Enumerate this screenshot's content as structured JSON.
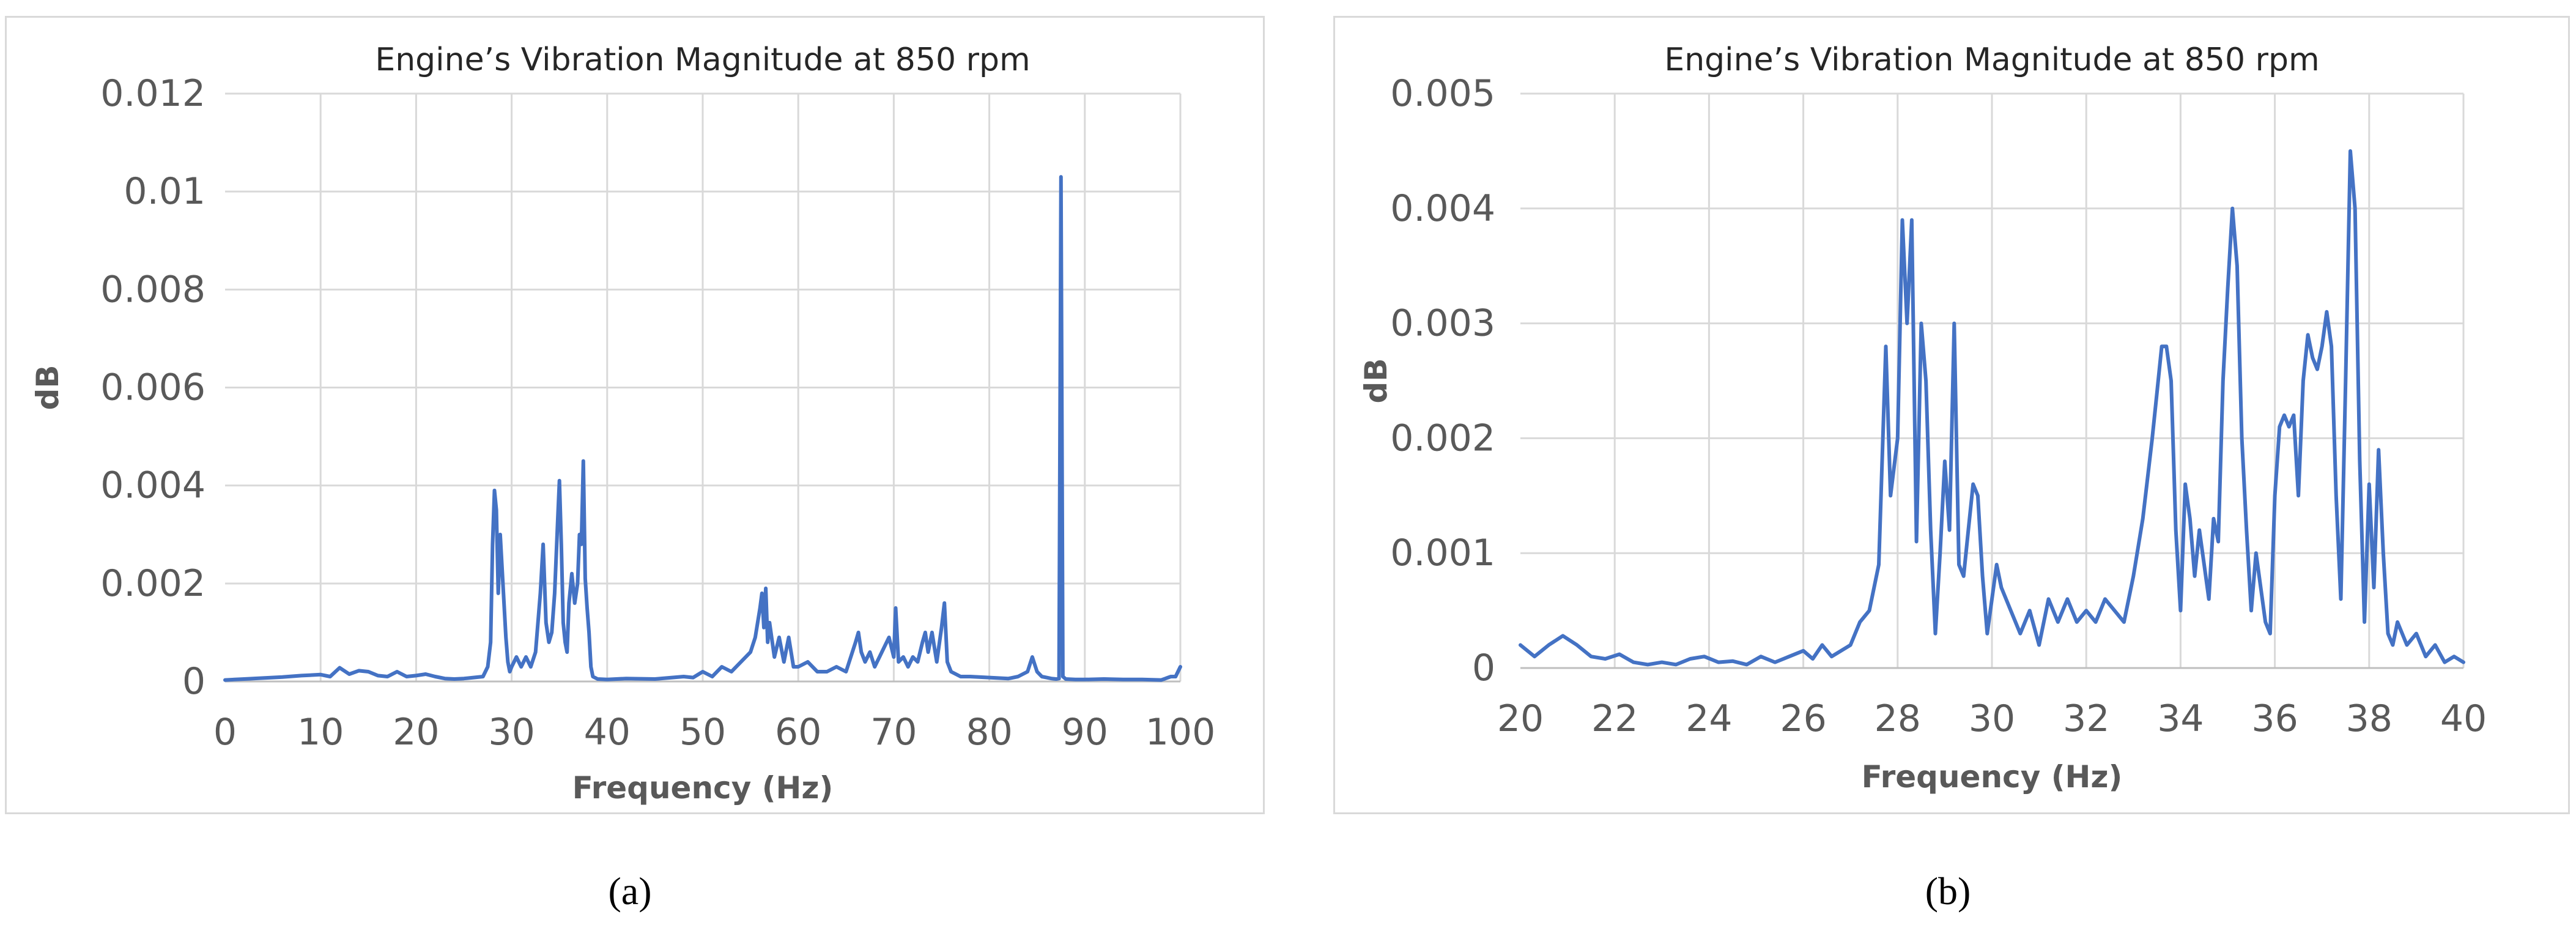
{
  "chart_data": [
    {
      "type": "line",
      "title": "Engine’s Vibration Magnitude at 850 rpm",
      "xlabel": "Frequency (Hz)",
      "ylabel": "dB",
      "xlim": [
        0,
        100
      ],
      "ylim": [
        0,
        0.012
      ],
      "xticks": [
        "0",
        "10",
        "20",
        "30",
        "40",
        "50",
        "60",
        "70",
        "80",
        "90",
        "100"
      ],
      "yticks": [
        "0",
        "0.002",
        "0.004",
        "0.006",
        "0.008",
        "0.01",
        "0.012"
      ],
      "grid": true,
      "color": "#4472c4",
      "series": [
        {
          "x": [
            0,
            2,
            4,
            6,
            8,
            10,
            11,
            12,
            13,
            14,
            15,
            16,
            17,
            18,
            19,
            20,
            21,
            22,
            23,
            24,
            25,
            26,
            27,
            27.5,
            27.8,
            28,
            28.2,
            28.4,
            28.6,
            28.8,
            29,
            29.2,
            29.4,
            29.6,
            29.8,
            30,
            30.5,
            31,
            31.5,
            32,
            32.5,
            33,
            33.3,
            33.6,
            33.9,
            34.2,
            34.5,
            34.8,
            35,
            35.2,
            35.4,
            35.6,
            35.8,
            36,
            36.3,
            36.6,
            36.9,
            37.1,
            37.3,
            37.5,
            37.7,
            37.9,
            38.1,
            38.3,
            38.5,
            39,
            40,
            42,
            45,
            48,
            49,
            50,
            51,
            52,
            53,
            54,
            55,
            55.5,
            56,
            56.2,
            56.4,
            56.6,
            56.8,
            57,
            57.5,
            58,
            58.5,
            59,
            59.5,
            60,
            61,
            62,
            63,
            64,
            65,
            66,
            66.3,
            66.6,
            67,
            67.5,
            68,
            68.5,
            69,
            69.5,
            70,
            70.2,
            70.5,
            71,
            71.5,
            72,
            72.5,
            73,
            73.3,
            73.6,
            74,
            74.5,
            75,
            75.3,
            75.6,
            76,
            77,
            78,
            80,
            82,
            83,
            84,
            84.5,
            85,
            85.5,
            86,
            86.5,
            87,
            87.3,
            87.5,
            87.7,
            88,
            89,
            90,
            92,
            94,
            96,
            98,
            99,
            99.5,
            100
          ],
          "y": [
            3e-05,
            5e-05,
            7e-05,
            9e-05,
            0.00012,
            0.00014,
            0.0001,
            0.00028,
            0.00015,
            0.00022,
            0.0002,
            0.00012,
            0.0001,
            0.0002,
            0.0001,
            0.00012,
            0.00015,
            0.0001,
            6e-05,
            5e-05,
            6e-05,
            8e-05,
            0.0001,
            0.0003,
            0.0008,
            0.0028,
            0.0039,
            0.0035,
            0.0018,
            0.003,
            0.0023,
            0.0016,
            0.0009,
            0.0004,
            0.0002,
            0.0003,
            0.0005,
            0.0003,
            0.0005,
            0.0003,
            0.0006,
            0.0018,
            0.0028,
            0.0012,
            0.0008,
            0.001,
            0.0018,
            0.0032,
            0.0041,
            0.0028,
            0.0012,
            0.0008,
            0.0006,
            0.0016,
            0.0022,
            0.0016,
            0.002,
            0.003,
            0.0028,
            0.0045,
            0.0021,
            0.0015,
            0.001,
            0.0003,
            0.0001,
            5e-05,
            4e-05,
            6e-05,
            5e-05,
            0.0001,
            8e-05,
            0.0002,
            0.0001,
            0.0003,
            0.0002,
            0.0004,
            0.0006,
            0.0009,
            0.0015,
            0.0018,
            0.0011,
            0.0019,
            0.0008,
            0.0012,
            0.0005,
            0.0009,
            0.0004,
            0.0009,
            0.0003,
            0.0003,
            0.0004,
            0.0002,
            0.0002,
            0.0003,
            0.0002,
            0.0008,
            0.001,
            0.0006,
            0.0004,
            0.0006,
            0.0003,
            0.0005,
            0.0007,
            0.0009,
            0.0005,
            0.0015,
            0.0004,
            0.0005,
            0.0003,
            0.0005,
            0.0004,
            0.0008,
            0.001,
            0.0006,
            0.001,
            0.0004,
            0.0011,
            0.0016,
            0.0004,
            0.0002,
            0.0001,
            0.0001,
            8e-05,
            6e-05,
            0.0001,
            0.0002,
            0.0005,
            0.0002,
            0.0001,
            8e-05,
            6e-05,
            5e-05,
            6e-05,
            0.0103,
            0.0001,
            5e-05,
            4e-05,
            4e-05,
            5e-05,
            4e-05,
            4e-05,
            3e-05,
            0.0001,
            0.0001,
            0.0003
          ]
        }
      ]
    },
    {
      "type": "line",
      "title": "Engine’s Vibration Magnitude at 850 rpm",
      "xlabel": "Frequency (Hz)",
      "ylabel": "dB",
      "xlim": [
        20,
        40
      ],
      "ylim": [
        0,
        0.005
      ],
      "xticks": [
        "20",
        "22",
        "24",
        "26",
        "28",
        "30",
        "32",
        "34",
        "36",
        "38",
        "40"
      ],
      "yticks": [
        "0",
        "0.001",
        "0.002",
        "0.003",
        "0.004",
        "0.005"
      ],
      "grid": true,
      "color": "#4472c4",
      "series": [
        {
          "x": [
            20,
            20.3,
            20.6,
            20.9,
            21.2,
            21.5,
            21.8,
            22.1,
            22.4,
            22.7,
            23,
            23.3,
            23.6,
            23.9,
            24.2,
            24.5,
            24.8,
            25.1,
            25.4,
            25.7,
            26,
            26.2,
            26.4,
            26.6,
            26.8,
            27,
            27.2,
            27.4,
            27.6,
            27.75,
            27.85,
            28,
            28.1,
            28.2,
            28.3,
            28.4,
            28.5,
            28.6,
            28.7,
            28.8,
            28.9,
            29,
            29.1,
            29.2,
            29.3,
            29.4,
            29.5,
            29.6,
            29.7,
            29.8,
            29.9,
            30,
            30.1,
            30.2,
            30.4,
            30.6,
            30.8,
            31,
            31.2,
            31.4,
            31.6,
            31.8,
            32,
            32.2,
            32.4,
            32.6,
            32.8,
            33,
            33.2,
            33.4,
            33.5,
            33.6,
            33.7,
            33.8,
            33.9,
            34,
            34.1,
            34.2,
            34.3,
            34.4,
            34.5,
            34.6,
            34.7,
            34.8,
            34.9,
            35,
            35.1,
            35.2,
            35.3,
            35.4,
            35.5,
            35.6,
            35.7,
            35.8,
            35.9,
            36,
            36.1,
            36.2,
            36.3,
            36.4,
            36.5,
            36.6,
            36.7,
            36.8,
            36.9,
            37,
            37.1,
            37.2,
            37.3,
            37.4,
            37.5,
            37.6,
            37.7,
            37.8,
            37.9,
            38,
            38.1,
            38.2,
            38.3,
            38.4,
            38.5,
            38.6,
            38.8,
            39,
            39.2,
            39.4,
            39.6,
            39.8,
            40
          ],
          "y": [
            0.0002,
            0.0001,
            0.0002,
            0.00028,
            0.0002,
            0.0001,
            8e-05,
            0.00012,
            5e-05,
            3e-05,
            5e-05,
            3e-05,
            8e-05,
            0.0001,
            5e-05,
            6e-05,
            3e-05,
            0.0001,
            5e-05,
            0.0001,
            0.00015,
            8e-05,
            0.0002,
            0.0001,
            0.00015,
            0.0002,
            0.0004,
            0.0005,
            0.0009,
            0.0028,
            0.0015,
            0.002,
            0.0039,
            0.003,
            0.0039,
            0.0011,
            0.003,
            0.0025,
            0.0012,
            0.0003,
            0.001,
            0.0018,
            0.0012,
            0.003,
            0.0009,
            0.0008,
            0.0012,
            0.0016,
            0.0015,
            0.0008,
            0.0003,
            0.0006,
            0.0009,
            0.0007,
            0.0005,
            0.0003,
            0.0005,
            0.0002,
            0.0006,
            0.0004,
            0.0006,
            0.0004,
            0.0005,
            0.0004,
            0.0006,
            0.0005,
            0.0004,
            0.0008,
            0.0013,
            0.002,
            0.0024,
            0.0028,
            0.0028,
            0.0025,
            0.0012,
            0.0005,
            0.0016,
            0.0013,
            0.0008,
            0.0012,
            0.0009,
            0.0006,
            0.0013,
            0.0011,
            0.0025,
            0.0033,
            0.004,
            0.0035,
            0.002,
            0.0012,
            0.0005,
            0.001,
            0.0007,
            0.0004,
            0.0003,
            0.0015,
            0.0021,
            0.0022,
            0.0021,
            0.0022,
            0.0015,
            0.0025,
            0.0029,
            0.0027,
            0.0026,
            0.0028,
            0.0031,
            0.0028,
            0.0015,
            0.0006,
            0.0025,
            0.0045,
            0.004,
            0.0018,
            0.0004,
            0.0016,
            0.0007,
            0.0019,
            0.001,
            0.0003,
            0.0002,
            0.0004,
            0.0002,
            0.0003,
            0.0001,
            0.0002,
            5e-05,
            0.0001,
            5e-05
          ]
        }
      ]
    }
  ],
  "captions": [
    "(a)",
    "(b)"
  ]
}
